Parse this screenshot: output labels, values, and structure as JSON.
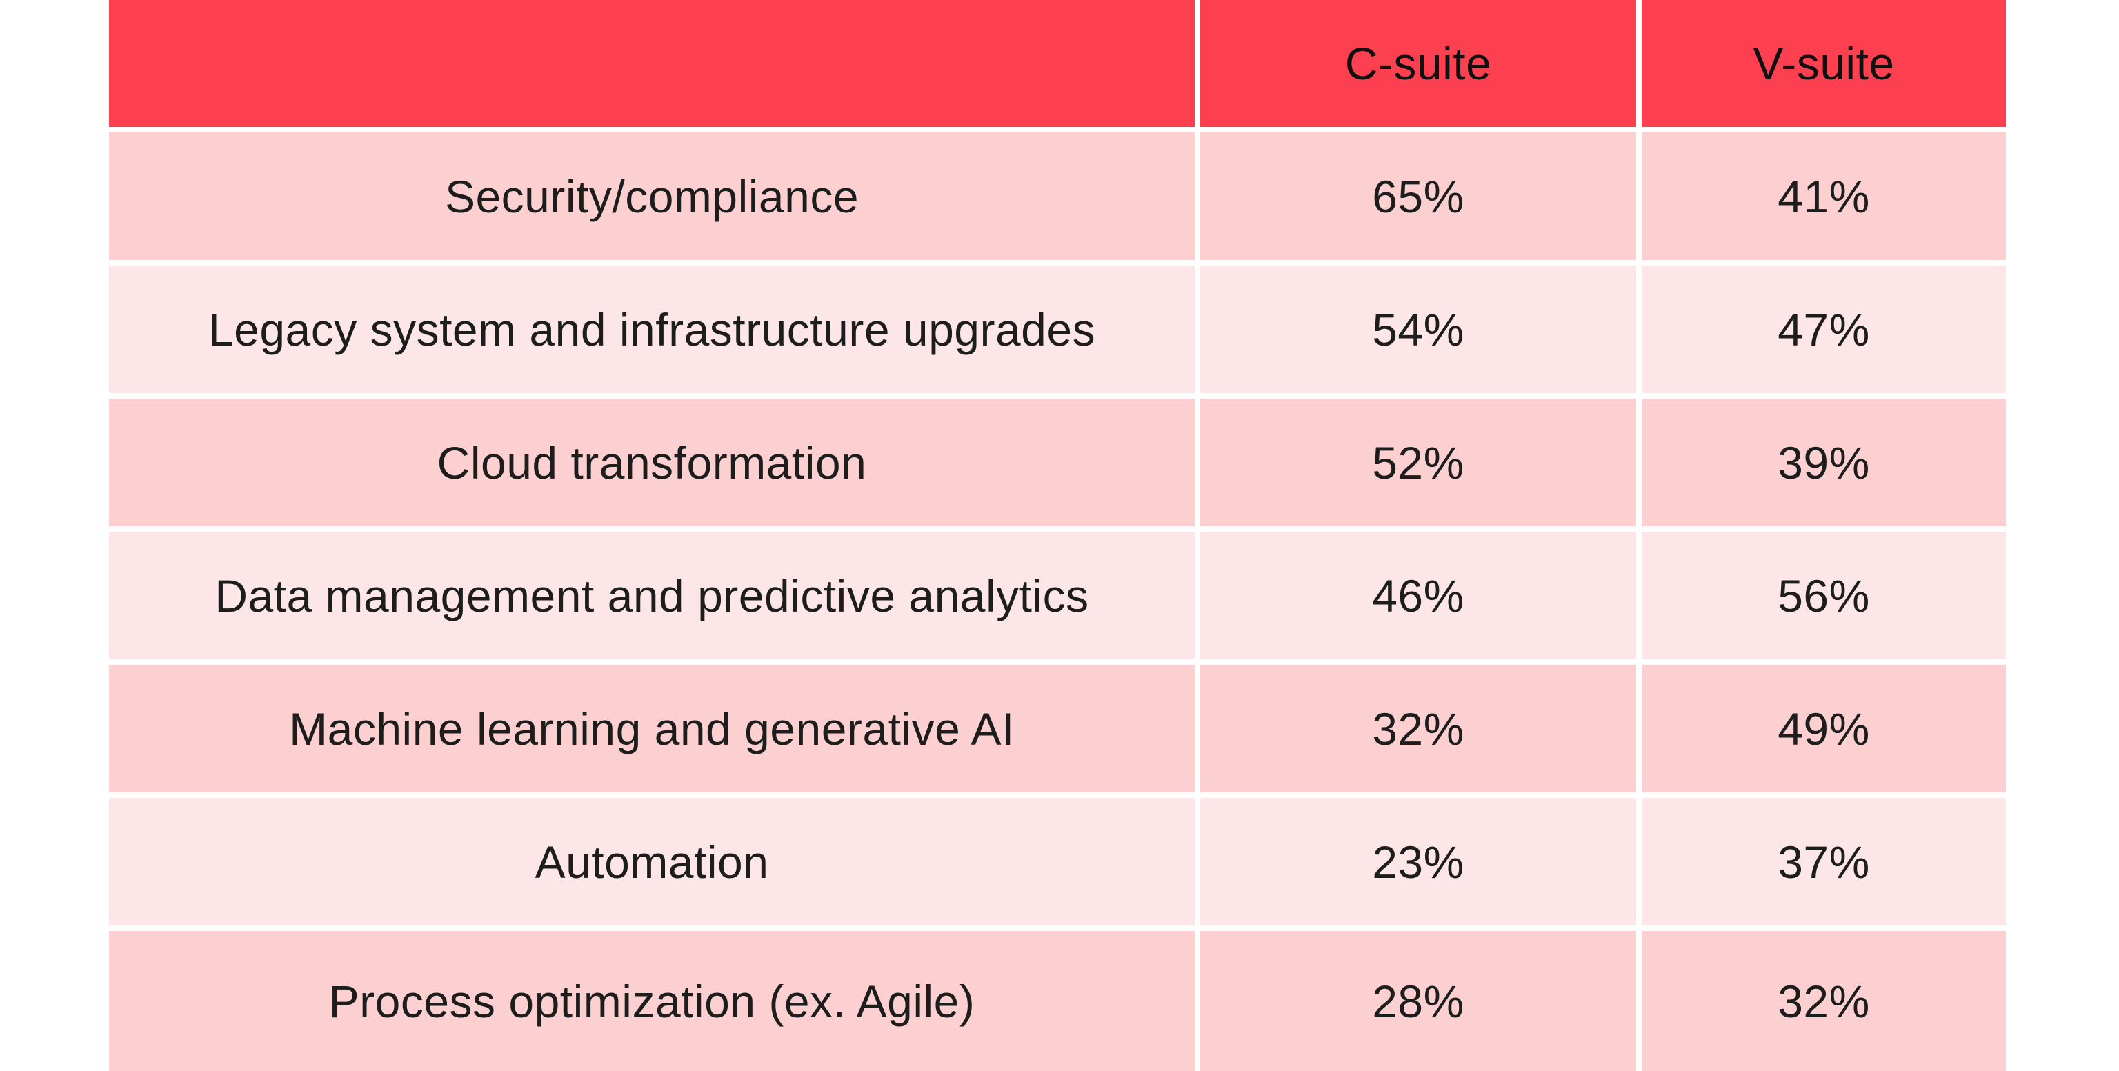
{
  "table": {
    "header": {
      "label_col": "",
      "c_suite": "C-suite",
      "v_suite": "V-suite"
    },
    "rows": [
      {
        "label": "Security/compliance",
        "c": "65%",
        "v": "41%"
      },
      {
        "label": "Legacy system and infrastructure upgrades",
        "c": "54%",
        "v": "47%"
      },
      {
        "label": "Cloud transformation",
        "c": "52%",
        "v": "39%"
      },
      {
        "label": "Data management and predictive analytics",
        "c": "46%",
        "v": "56%"
      },
      {
        "label": "Machine learning and generative AI",
        "c": "32%",
        "v": "49%"
      },
      {
        "label": "Automation",
        "c": "23%",
        "v": "37%"
      },
      {
        "label": "Process optimization (ex. Agile)",
        "c": "28%",
        "v": "32%"
      }
    ]
  },
  "colors": {
    "header_bg": "#fc4050",
    "header_text": "#111111",
    "row_dark": "#fcd0d1",
    "row_light": "#fde6e7",
    "text": "#1d1d1d",
    "background": "#ffffff"
  },
  "chart_data": {
    "type": "table",
    "title": "",
    "categories": [
      "Security/compliance",
      "Legacy system and infrastructure upgrades",
      "Cloud transformation",
      "Data management and predictive analytics",
      "Machine learning and generative AI",
      "Automation",
      "Process optimization (ex. Agile)"
    ],
    "series": [
      {
        "name": "C-suite",
        "values": [
          65,
          54,
          52,
          46,
          32,
          23,
          28
        ]
      },
      {
        "name": "V-suite",
        "values": [
          41,
          47,
          39,
          56,
          49,
          37,
          32
        ]
      }
    ],
    "unit": "%",
    "layout_hints": {
      "header_style": "solid red band",
      "body_style": "alternating pink rows, white gutters between all cells",
      "first_column": "category labels, centered",
      "value_columns": "percentages, centered"
    }
  }
}
